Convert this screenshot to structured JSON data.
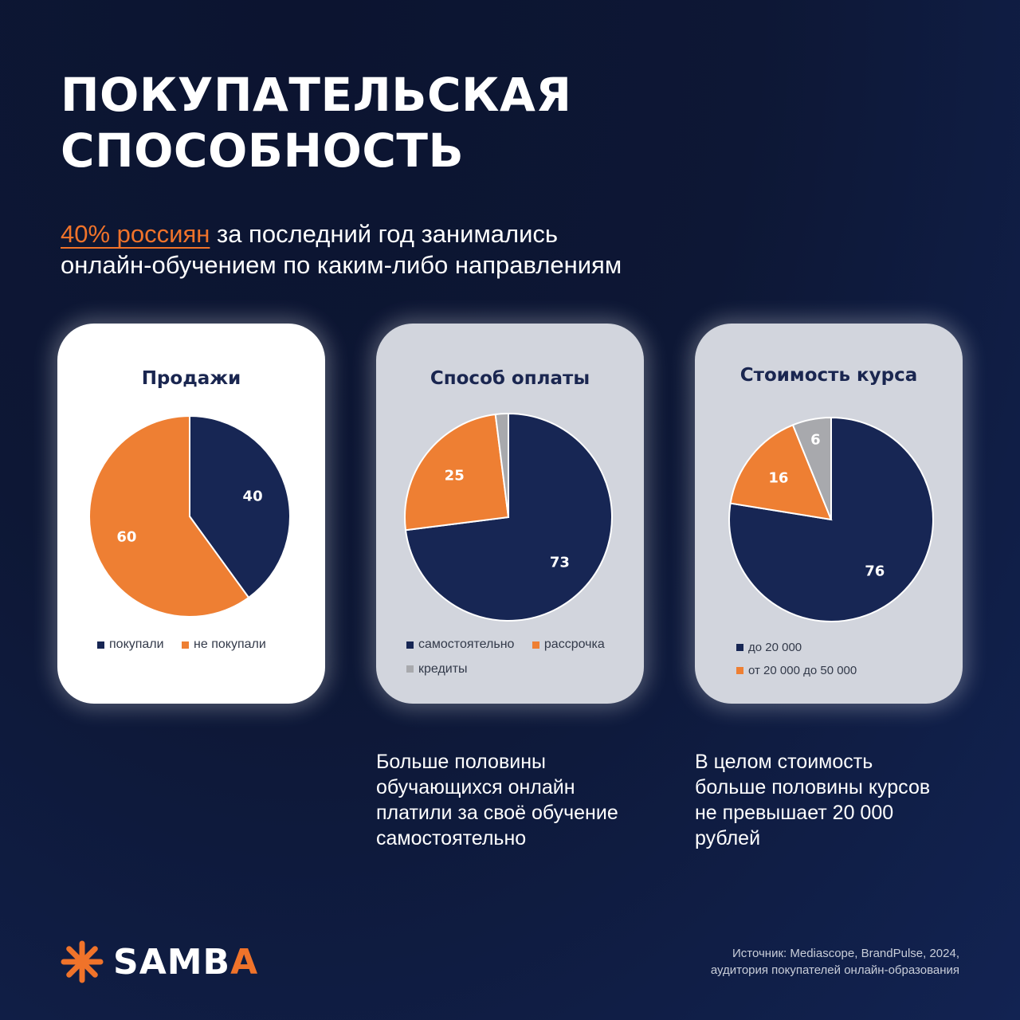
{
  "title": {
    "line1": "ПОКУПАТЕЛЬСКАЯ",
    "line2": "СПОСОБНОСТЬ"
  },
  "lead": {
    "highlight": "40% россиян",
    "rest1": " за последний год занимались",
    "line2": "онлайн-обучением по каким-либо направлениям"
  },
  "colors": {
    "navy": "#172654",
    "orange": "#ee7f33",
    "grey": "#a8a9ad",
    "accent": "#f0732a"
  },
  "cards": [
    {
      "title": "Продажи"
    },
    {
      "title": "Способ оплаты"
    },
    {
      "title": "Стоимость курса"
    }
  ],
  "chart_data": [
    {
      "type": "pie",
      "title": "Продажи",
      "categories": [
        "покупали",
        "не покупали"
      ],
      "values": [
        40,
        60
      ],
      "colors": [
        "#172654",
        "#ee7f33"
      ],
      "legend": "bottom"
    },
    {
      "type": "pie",
      "title": "Способ оплаты",
      "categories": [
        "самостоятельно",
        "рассрочка",
        "кредиты"
      ],
      "values": [
        73,
        25,
        2
      ],
      "labels": [
        "73",
        "25",
        ""
      ],
      "colors": [
        "#172654",
        "#ee7f33",
        "#a8a9ad"
      ],
      "legend": "bottom"
    },
    {
      "type": "pie",
      "title": "Стоимость курса",
      "categories": [
        "до 20 000",
        "от 20 000 до 50 000",
        ""
      ],
      "values": [
        76,
        16,
        6
      ],
      "colors": [
        "#172654",
        "#ee7f33",
        "#a8a9ad"
      ],
      "legend": "bottom"
    }
  ],
  "notes": {
    "payment": [
      "Больше половины",
      "обучающихся онлайн",
      "платили за своё обучение",
      "самостоятельно"
    ],
    "cost": [
      "В целом стоимость",
      "больше половины курсов",
      "не превышает 20 000",
      "рублей"
    ]
  },
  "logo": {
    "text_main": "SAMB",
    "text_accent": "A",
    "icon": "asterisk-icon"
  },
  "source": {
    "line1": "Источник: Mediascope, BrandPulse, 2024,",
    "line2": "аудитория покупателей онлайн-образования"
  }
}
